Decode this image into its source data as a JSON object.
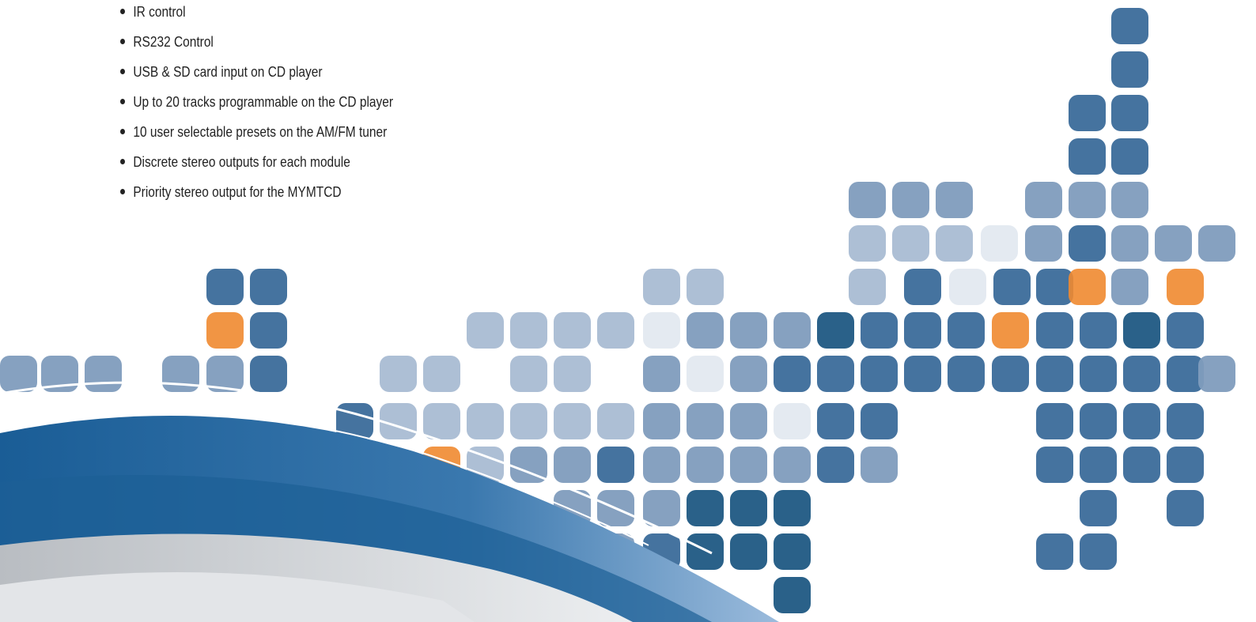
{
  "list": {
    "items": [
      "IR control",
      "RS232 Control",
      "USB & SD card input on CD player",
      "Up to 20 tracks programmable on the CD player",
      "10 user selectable presets on the AM/FM tuner",
      "Discrete stereo outputs for each module",
      "Priority stereo output for the MYMTCD"
    ]
  }
}
